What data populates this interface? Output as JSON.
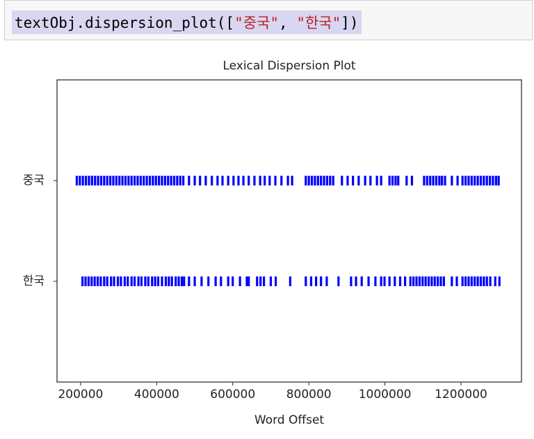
{
  "code": [
    "textObj.dispersion_plot([",
    "\"중국\"",
    ", ",
    "\"한국\"",
    "])"
  ],
  "chart_data": {
    "type": "dispersion",
    "title": "Lexical Dispersion Plot",
    "x_label": "Word Offset",
    "xlim": [
      138000,
      1359000
    ],
    "xticks": [
      200000,
      400000,
      600000,
      800000,
      1000000,
      1200000
    ],
    "ylim": [
      -1,
      2
    ],
    "yticks": [
      {
        "value": 0,
        "label": "한국"
      },
      {
        "value": 1,
        "label": "중국"
      }
    ],
    "color": "#0000ff",
    "series": [
      {
        "y": 1,
        "x": [
          190000,
          198000,
          206000,
          214000,
          222000,
          230000,
          238000,
          246000,
          254000,
          262000,
          270000,
          278000,
          286000,
          294000,
          302000,
          310000,
          318000,
          326000,
          334000,
          342000,
          350000,
          358000,
          366000,
          374000,
          382000,
          390000,
          398000,
          406000,
          414000,
          422000,
          430000,
          438000,
          446000,
          454000,
          462000,
          470000,
          485000,
          500000,
          514000,
          529000,
          545000,
          560000,
          573000,
          588000,
          602000,
          615000,
          628000,
          642000,
          657000,
          672000,
          684000,
          697000,
          712000,
          728000,
          745000,
          756000,
          792000,
          800000,
          808000,
          816000,
          824000,
          832000,
          840000,
          848000,
          856000,
          864000,
          887000,
          902000,
          916000,
          931000,
          948000,
          962000,
          979000,
          990000,
          1012000,
          1020000,
          1028000,
          1035000,
          1057000,
          1071000,
          1103000,
          1111000,
          1119000,
          1127000,
          1135000,
          1143000,
          1150000,
          1158000,
          1176000,
          1191000,
          1204000,
          1212000,
          1220000,
          1228000,
          1236000,
          1244000,
          1252000,
          1260000,
          1268000,
          1276000,
          1284000,
          1292000,
          1299000
        ]
      },
      {
        "y": 0,
        "x": [
          205000,
          213000,
          221000,
          229000,
          237000,
          245000,
          253000,
          262000,
          270000,
          280000,
          288000,
          298000,
          306000,
          316000,
          324000,
          334000,
          342000,
          352000,
          360000,
          370000,
          378000,
          388000,
          396000,
          404000,
          414000,
          424000,
          432000,
          440000,
          450000,
          458000,
          466000,
          472000,
          485000,
          500000,
          518000,
          536000,
          555000,
          569000,
          588000,
          600000,
          619000,
          637000,
          642000,
          664000,
          673000,
          682000,
          700000,
          713000,
          751000,
          792000,
          806000,
          819000,
          832000,
          847000,
          878000,
          911000,
          924000,
          939000,
          957000,
          975000,
          990000,
          999000,
          1012000,
          1026000,
          1040000,
          1053000,
          1067000,
          1075000,
          1083000,
          1091000,
          1099000,
          1107000,
          1115000,
          1123000,
          1131000,
          1139000,
          1147000,
          1155000,
          1176000,
          1189000,
          1204000,
          1212000,
          1220000,
          1228000,
          1236000,
          1244000,
          1252000,
          1260000,
          1268000,
          1277000,
          1290000,
          1301000
        ]
      }
    ]
  }
}
